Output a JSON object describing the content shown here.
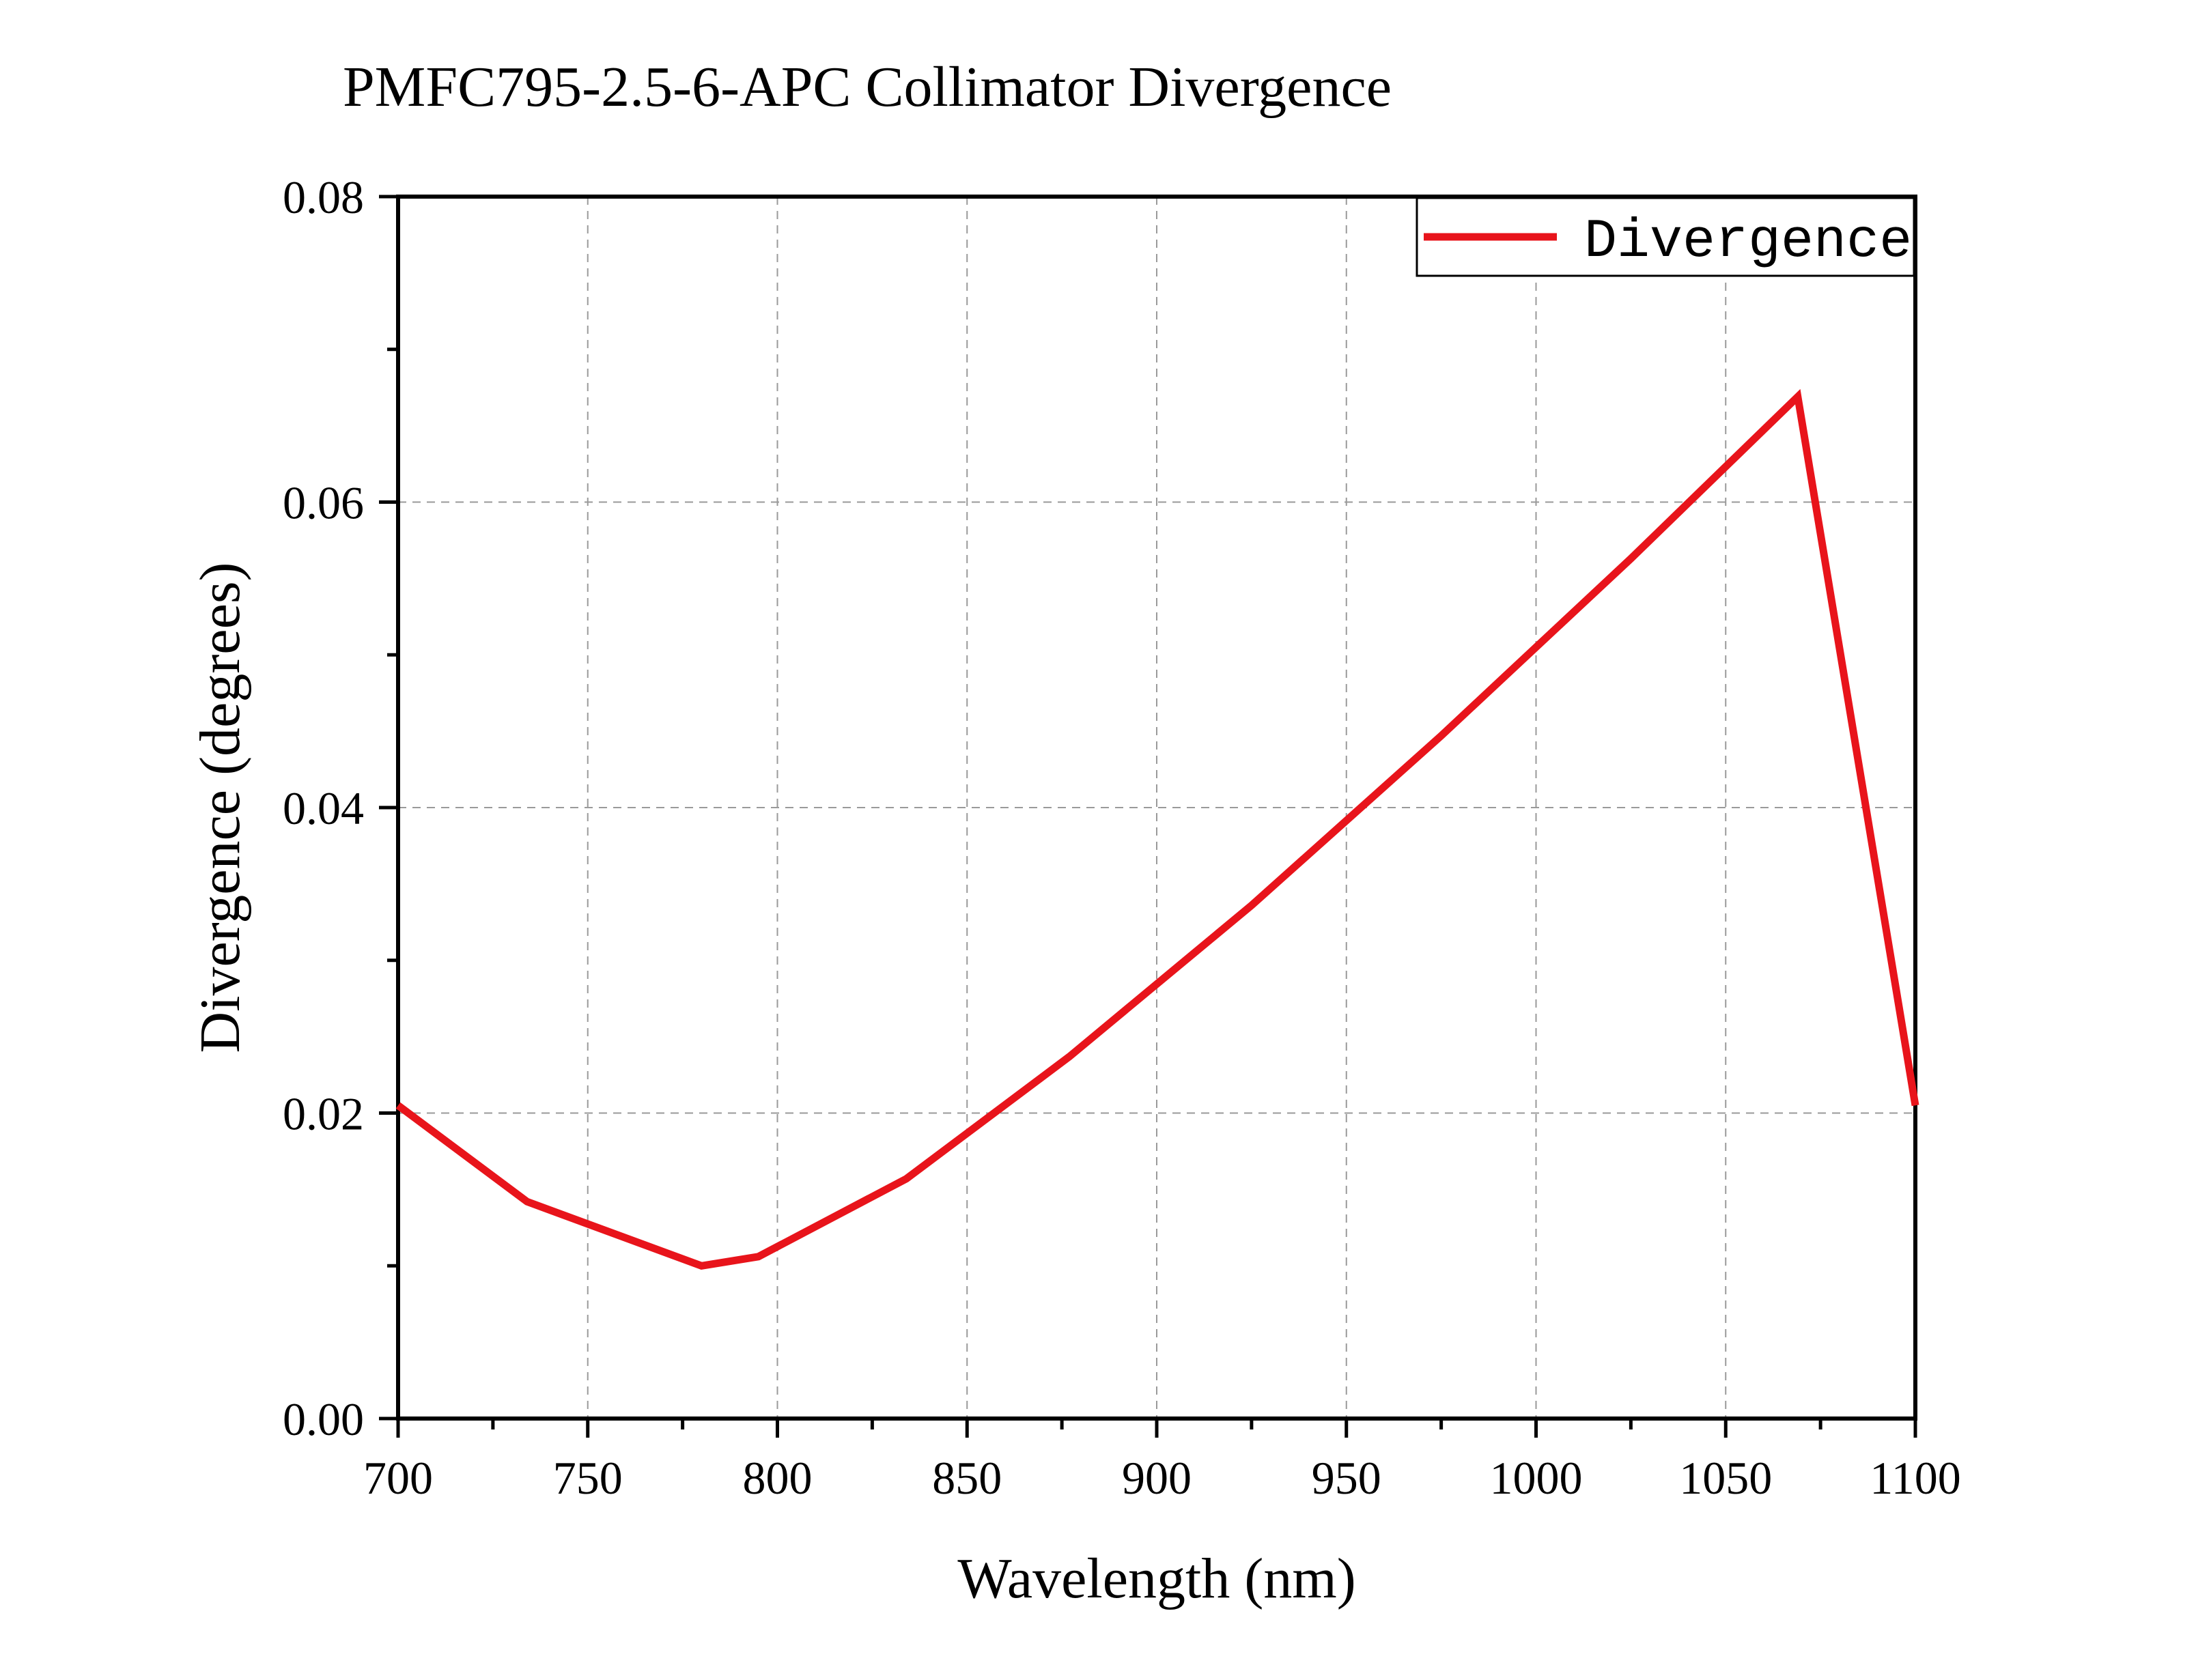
{
  "chart_data": {
    "type": "line",
    "title": "PMFC795-2.5-6-APC Collimator Divergence",
    "xlabel": "Wavelength (nm)",
    "ylabel": "Divergence (degrees)",
    "xlim": [
      700,
      1100
    ],
    "ylim": [
      0,
      0.08
    ],
    "x_ticks": [
      "700",
      "750",
      "800",
      "850",
      "900",
      "950",
      "1000",
      "1050",
      "1100"
    ],
    "y_ticks": [
      "0.00",
      "0.02",
      "0.04",
      "0.06",
      "0.08"
    ],
    "grid": true,
    "legend_position": "top-right",
    "series": [
      {
        "name": "Divergence",
        "color": "#e8141b",
        "x": [
          700,
          734,
          780,
          795,
          834,
          877,
          925,
          975,
          1025,
          1069,
          1100
        ],
        "y": [
          0.0205,
          0.0142,
          0.01,
          0.0106,
          0.0157,
          0.0237,
          0.0336,
          0.0447,
          0.0563,
          0.0669,
          0.0205
        ]
      }
    ]
  }
}
